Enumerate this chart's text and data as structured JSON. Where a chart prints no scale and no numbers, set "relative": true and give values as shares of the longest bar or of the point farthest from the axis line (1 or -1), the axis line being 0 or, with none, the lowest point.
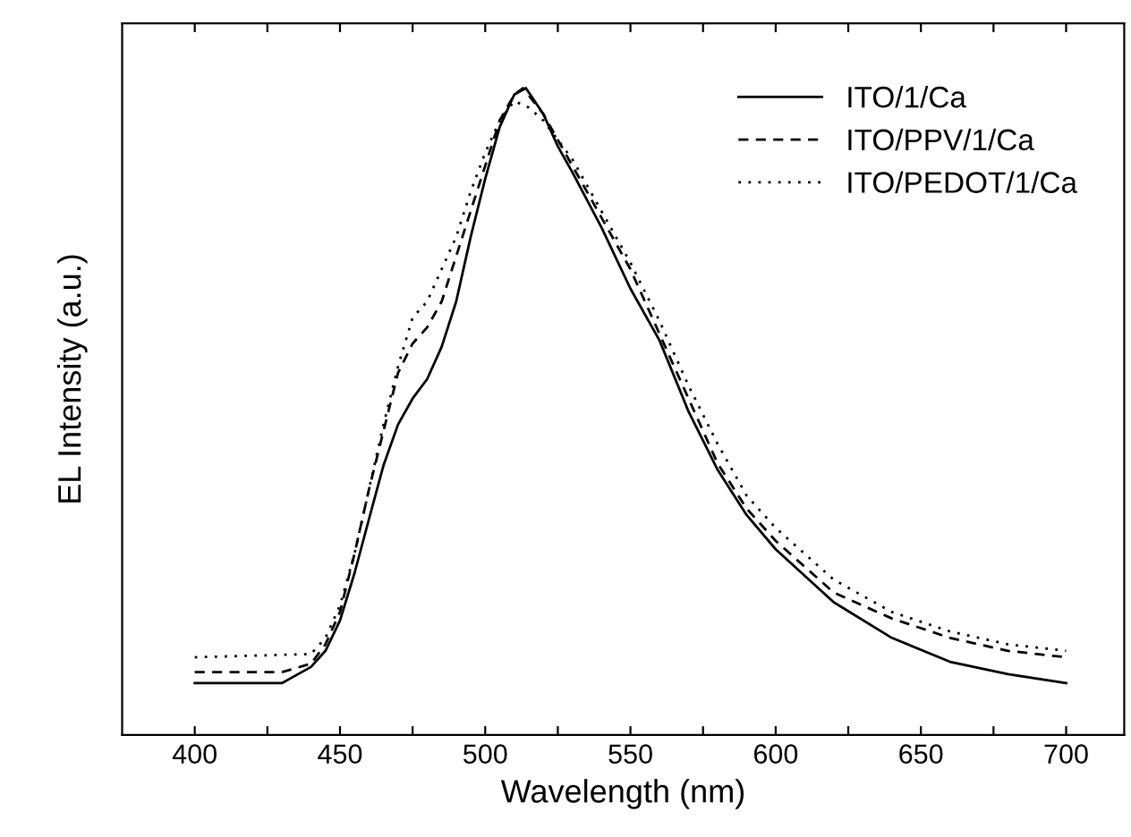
{
  "chart_data": {
    "type": "line",
    "xlabel": "Wavelength (nm)",
    "ylabel": "EL Intensity (a.u.)",
    "relative": true,
    "tick_labels": "x",
    "legend": "top right",
    "grid": false,
    "marker": "none",
    "xlim": [
      375,
      720
    ],
    "xticks": [
      400,
      {
        "value": 425,
        "label": null
      },
      450,
      {
        "value": 475,
        "label": null
      },
      500,
      {
        "value": 525,
        "label": null
      },
      550,
      {
        "value": 575,
        "label": null
      },
      600,
      {
        "value": 625,
        "label": null
      },
      650,
      {
        "value": 675,
        "label": null
      },
      700
    ],
    "series": [
      {
        "name": "ITO/1/Ca",
        "color": "#000000",
        "line_style": "solid",
        "x": [
          400,
          430,
          440,
          445,
          450,
          455,
          460,
          465,
          470,
          475,
          480,
          485,
          490,
          495,
          500,
          505,
          510,
          514,
          520,
          525,
          530,
          540,
          550,
          560,
          570,
          580,
          590,
          600,
          620,
          640,
          660,
          680,
          700
        ],
        "values": [
          0.08,
          0.08,
          0.105,
          0.13,
          0.177,
          0.25,
          0.334,
          0.417,
          0.48,
          0.52,
          0.55,
          0.6,
          0.67,
          0.77,
          0.86,
          0.94,
          0.99,
          1.0,
          0.96,
          0.91,
          0.87,
          0.785,
          0.69,
          0.61,
          0.5,
          0.41,
          0.34,
          0.287,
          0.205,
          0.15,
          0.113,
          0.094,
          0.08
        ]
      },
      {
        "name": "ITO/PPV/1/Ca",
        "color": "#000000",
        "line_style": "dashed",
        "x": [
          400,
          430,
          440,
          445,
          450,
          455,
          460,
          465,
          470,
          475,
          480,
          485,
          490,
          495,
          500,
          505,
          510,
          513,
          520,
          530,
          540,
          550,
          560,
          570,
          580,
          590,
          600,
          620,
          640,
          660,
          680,
          700
        ],
        "values": [
          0.097,
          0.097,
          0.11,
          0.14,
          0.19,
          0.28,
          0.38,
          0.47,
          0.56,
          0.605,
          0.63,
          0.67,
          0.74,
          0.81,
          0.88,
          0.95,
          0.99,
          1.0,
          0.96,
          0.88,
          0.8,
          0.72,
          0.62,
          0.52,
          0.42,
          0.35,
          0.3,
          0.22,
          0.18,
          0.15,
          0.13,
          0.12
        ]
      },
      {
        "name": "ITO/PEDOT/1/Ca",
        "color": "#000000",
        "line_style": "dotted",
        "x": [
          400,
          440,
          445,
          450,
          455,
          460,
          465,
          470,
          475,
          480,
          485,
          490,
          495,
          500,
          505,
          510,
          515,
          520,
          530,
          540,
          550,
          560,
          570,
          580,
          590,
          600,
          620,
          640,
          660,
          680,
          700
        ],
        "values": [
          0.12,
          0.125,
          0.15,
          0.2,
          0.28,
          0.38,
          0.48,
          0.57,
          0.645,
          0.67,
          0.72,
          0.77,
          0.84,
          0.9,
          0.95,
          0.98,
          0.97,
          0.95,
          0.89,
          0.81,
          0.73,
          0.64,
          0.54,
          0.45,
          0.37,
          0.32,
          0.24,
          0.19,
          0.16,
          0.14,
          0.13
        ]
      }
    ]
  }
}
